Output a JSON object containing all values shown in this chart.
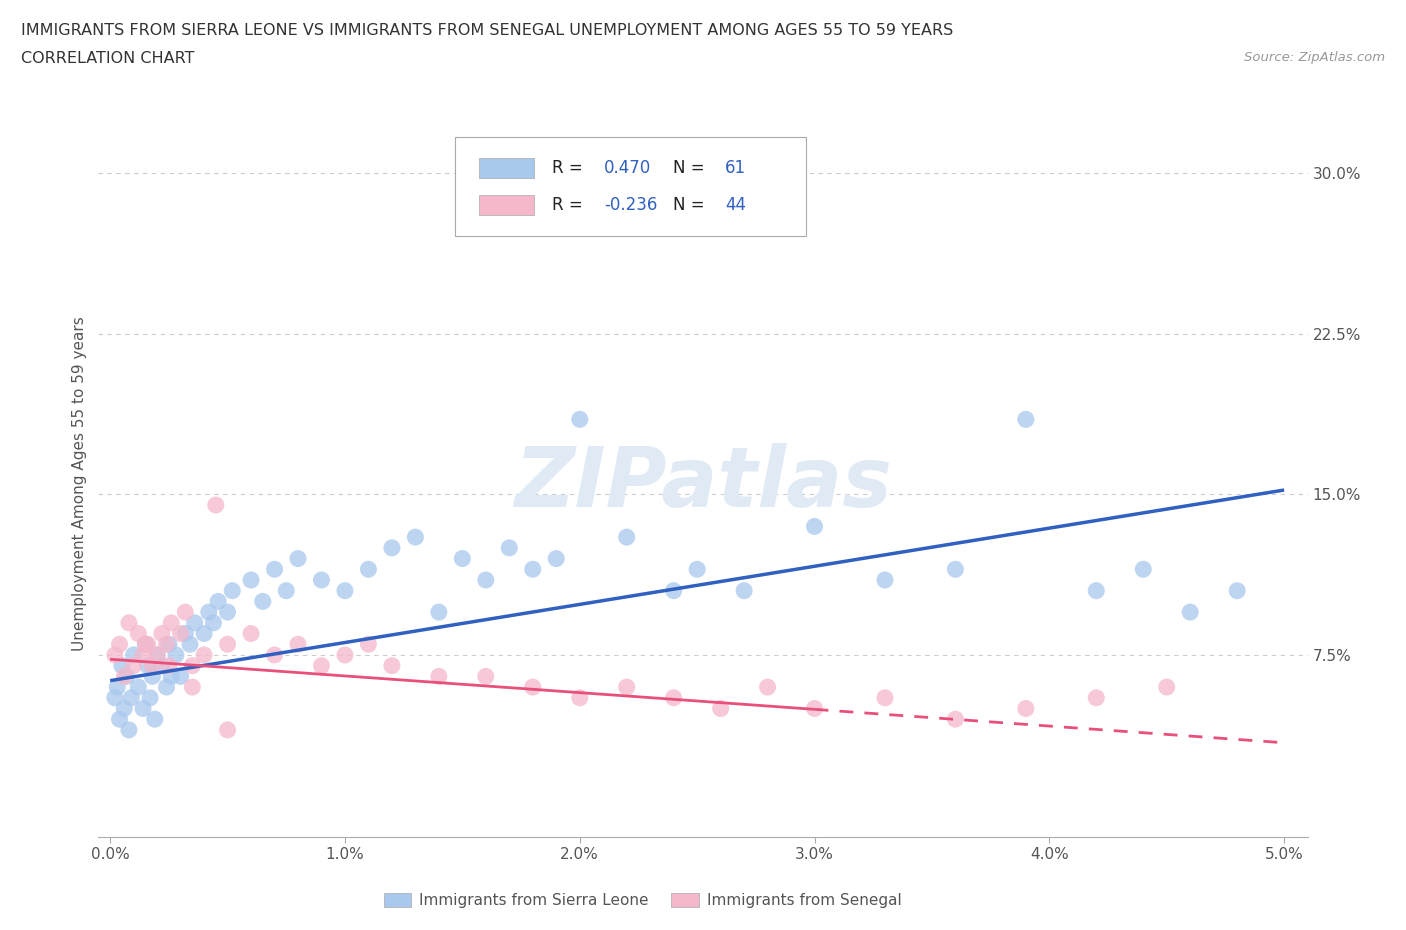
{
  "title_line1": "IMMIGRANTS FROM SIERRA LEONE VS IMMIGRANTS FROM SENEGAL UNEMPLOYMENT AMONG AGES 55 TO 59 YEARS",
  "title_line2": "CORRELATION CHART",
  "source": "Source: ZipAtlas.com",
  "ylabel": "Unemployment Among Ages 55 to 59 years",
  "xlim": [
    -0.0005,
    0.051
  ],
  "ylim": [
    -0.01,
    0.32
  ],
  "xticks": [
    0.0,
    0.01,
    0.02,
    0.03,
    0.04,
    0.05
  ],
  "xticklabels": [
    "0.0%",
    "1.0%",
    "2.0%",
    "3.0%",
    "4.0%",
    "5.0%"
  ],
  "yticks": [
    0.075,
    0.15,
    0.225,
    0.3
  ],
  "yticklabels": [
    "7.5%",
    "15.0%",
    "22.5%",
    "30.0%"
  ],
  "grid_color": "#cccccc",
  "background_color": "#ffffff",
  "sierra_leone_color": "#a8c8ed",
  "senegal_color": "#f5b8cb",
  "sierra_leone_line_color": "#3060c0",
  "senegal_line_color": "#e8507a",
  "legend_R_sierra": "0.470",
  "legend_N_sierra": "61",
  "legend_R_senegal": "-0.236",
  "legend_N_senegal": "44",
  "watermark": "ZIPatlas",
  "watermark_color": "#e0eaf5",
  "sl_line_y0": 0.063,
  "sl_line_y1": 0.152,
  "sen_line_y0": 0.073,
  "sen_line_y1": 0.034,
  "sen_line_solid_end": 0.03,
  "sen_line_dashed_start": 0.03
}
